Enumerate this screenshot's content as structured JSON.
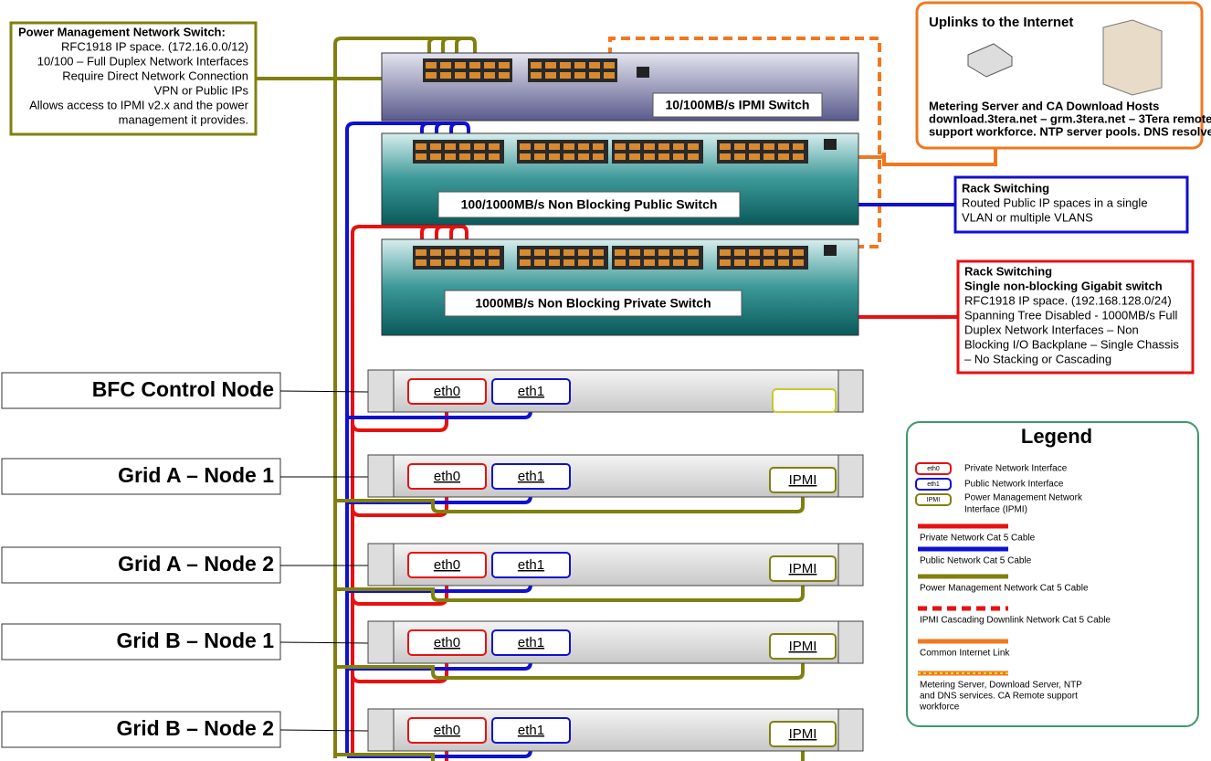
{
  "notes": {
    "power": {
      "title": "Power Management Network Switch:",
      "lines": [
        "RFC1918 IP space. (172.16.0.0/12)",
        "10/100 – Full Duplex Network Interfaces",
        "Require Direct Network Connection",
        "VPN or Public IPs",
        "Allows access to IPMI v2.x and the power",
        "management it provides."
      ]
    },
    "uplinks": {
      "title": "Uplinks to the Internet",
      "lines": [
        "Metering Server and CA Download Hosts",
        "download.3tera.net – grm.3tera.net – 3Tera remote",
        "support workforce. NTP server pools. DNS resolvers"
      ]
    },
    "public": {
      "title": "Rack Switching",
      "lines": [
        "Routed Public IP spaces in a single",
        "VLAN or multiple VLANS"
      ]
    },
    "private": {
      "title": "Rack Switching",
      "lines": [
        "Single non-blocking Gigabit switch",
        "RFC1918 IP space. (192.168.128.0/24)",
        "Spanning Tree Disabled - 1000MB/s Full",
        "Duplex Network Interfaces – Non",
        "Blocking I/O Backplane – Single Chassis",
        "– No Stacking or Cascading"
      ]
    }
  },
  "switches": [
    "10/100MB/s IPMI Switch",
    "100/1000MB/s Non Blocking Public Switch",
    "1000MB/s Non Blocking Private Switch"
  ],
  "nodes": [
    {
      "label": "BFC Control Node",
      "ports": [
        "eth0",
        "eth1"
      ]
    },
    {
      "label": "Grid A – Node 1",
      "ports": [
        "eth0",
        "eth1",
        "IPMI"
      ]
    },
    {
      "label": "Grid A – Node 2",
      "ports": [
        "eth0",
        "eth1",
        "IPMI"
      ]
    },
    {
      "label": "Grid B – Node 1",
      "ports": [
        "eth0",
        "eth1",
        "IPMI"
      ]
    },
    {
      "label": "Grid B – Node 2",
      "ports": [
        "eth0",
        "eth1",
        "IPMI"
      ]
    }
  ],
  "legend": {
    "title": "Legend",
    "interfaces": [
      {
        "icon": "eth0",
        "label": "Private Network Interface"
      },
      {
        "icon": "eth1",
        "label": "Public Network Interface"
      },
      {
        "icon": "IPMI",
        "lines": [
          "Power Management Network",
          "Interface (IPMI)"
        ]
      }
    ],
    "cables": [
      {
        "lines": [
          "Private Network Cat 5 Cable"
        ]
      },
      {
        "lines": [
          "Public Network Cat 5 Cable"
        ]
      },
      {
        "lines": [
          "Power Management Network Cat 5 Cable"
        ]
      },
      {
        "lines": [
          "IPMI Cascading Downlink Network Cat 5 Cable"
        ]
      },
      {
        "lines": [
          "Common Internet Link"
        ]
      },
      {
        "lines": [
          "Metering Server, Download Server, NTP",
          "and DNS services. CA Remote support",
          "workforce"
        ]
      }
    ]
  }
}
